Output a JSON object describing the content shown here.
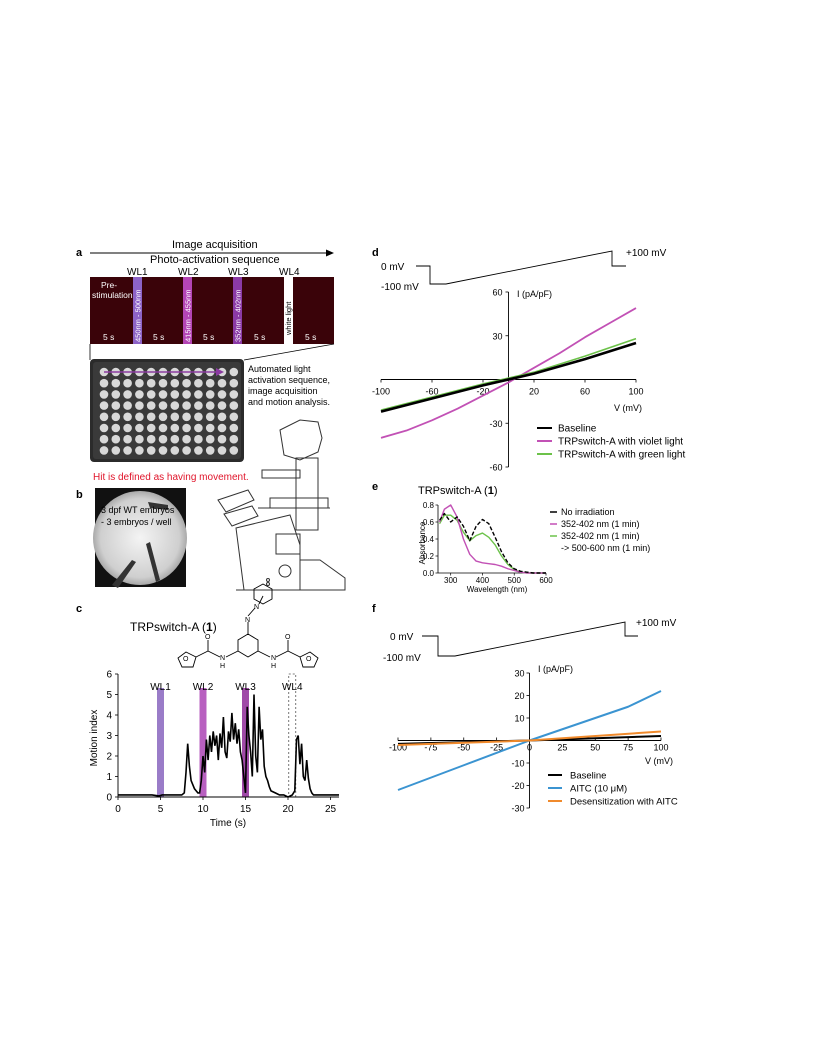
{
  "panel_labels": {
    "a": "a",
    "b": "b",
    "c": "c",
    "d": "d",
    "e": "e",
    "f": "f"
  },
  "panel_a": {
    "image_acquisition": "Image acquisition",
    "photoactivation_sequence": "Photo-activation sequence",
    "wl_labels": [
      "WL1",
      "WL2",
      "WL3",
      "WL4"
    ],
    "prestim_line1": "Pre-",
    "prestim_line2": "stimulation",
    "band_labels": [
      "450nm - 500nm",
      "415nm - 455nm",
      "352nm - 402nm",
      "white light"
    ],
    "interval_label": "5 s",
    "automation_line1": "Automated light",
    "automation_line2": "activation sequence,",
    "automation_line3": "image acquisition",
    "automation_line4": "and motion analysis.",
    "hit_definition": "Hit is defined as having movement.",
    "colors": {
      "dark_red": "#3a0309",
      "violet": "#9466c6",
      "magenta": "#b545b0",
      "purple": "#8a3aa0",
      "hit_red": "#e0142a"
    }
  },
  "panel_b": {
    "line1": "3 dpf WT embryos",
    "line2": "- 3 embryos / well"
  },
  "panel_c": {
    "compound_title": "TRPswitch-A (",
    "compound_number": "1",
    "compound_close": ")",
    "atom_n": "N",
    "atom_h": "H",
    "atom_o": "O",
    "chart_data": {
      "type": "line",
      "xlabel": "Time (s)",
      "ylabel": "Motion index",
      "xlim": [
        0,
        26
      ],
      "ylim": [
        0,
        6
      ],
      "xticks": [
        "0",
        "5",
        "10",
        "15",
        "20",
        "25"
      ],
      "yticks": [
        "0",
        "1",
        "2",
        "3",
        "4",
        "5",
        "6"
      ],
      "wl_markers": [
        {
          "label": "WL1",
          "t": 5,
          "color": "#9a7cc8"
        },
        {
          "label": "WL2",
          "t": 10,
          "color": "#b860c0"
        },
        {
          "label": "WL3",
          "t": 15,
          "color": "#a04aa8"
        },
        {
          "label": "WL4",
          "t": 20.5,
          "color": "none"
        }
      ],
      "x": [
        0,
        1,
        2,
        3,
        4,
        4.8,
        5.2,
        6,
        7,
        7.5,
        7.8,
        8,
        8.2,
        8.4,
        8.6,
        8.8,
        9,
        9.2,
        9.4,
        9.6,
        9.8,
        10,
        10.2,
        10.4,
        10.6,
        10.8,
        11,
        11.2,
        11.4,
        11.6,
        11.8,
        12,
        12.2,
        12.4,
        12.6,
        12.8,
        13,
        13.2,
        13.4,
        13.6,
        13.8,
        14,
        14.2,
        14.4,
        14.6,
        14.8,
        15,
        15.2,
        15.4,
        15.6,
        15.8,
        16,
        16.2,
        16.4,
        16.6,
        16.8,
        17,
        17.2,
        17.4,
        17.6,
        17.8,
        18,
        18.5,
        19,
        19.5,
        20,
        20.5,
        20.8,
        21,
        21.2,
        21.4,
        21.6,
        21.8,
        22,
        22.2,
        22.4,
        22.6,
        22.8,
        23,
        23.5,
        24,
        25,
        26
      ],
      "values": [
        0.1,
        0.1,
        0.1,
        0.1,
        0.1,
        0.05,
        0.1,
        0.1,
        0.1,
        0.1,
        0.2,
        1.2,
        2.6,
        1.5,
        0.8,
        0.6,
        0.4,
        0.3,
        0.2,
        0.2,
        0.8,
        2.0,
        1.2,
        2.8,
        1.8,
        3.0,
        2.2,
        3.2,
        2.5,
        3.0,
        1.8,
        3.1,
        2.4,
        3.9,
        2.2,
        1.9,
        3.2,
        2.7,
        4.1,
        2.8,
        3.6,
        2.6,
        3.3,
        2.2,
        1.8,
        1.0,
        0.2,
        4.4,
        3.0,
        2.2,
        1.0,
        5.0,
        2.0,
        1.2,
        4.4,
        2.8,
        3.3,
        1.5,
        1.0,
        0.8,
        0.5,
        0.3,
        0.2,
        0.1,
        0.1,
        0.0,
        0.1,
        0.3,
        2.8,
        3.0,
        1.6,
        2.6,
        1.0,
        0.8,
        1.8,
        0.9,
        0.4,
        0.2,
        0.1,
        0.1,
        0.1,
        0.1,
        0.1
      ]
    }
  },
  "panel_d": {
    "protocol_top": "+100 mV",
    "protocol_zero": "0 mV",
    "protocol_bottom": "-100 mV",
    "chart_data": {
      "type": "line",
      "xlabel": "V (mV)",
      "ylabel": "I (pA/pF)",
      "xlim": [
        -100,
        100
      ],
      "ylim": [
        -60,
        60
      ],
      "xticks": [
        "-100",
        "-60",
        "-20",
        "20",
        "60",
        "100"
      ],
      "yticks": [
        "60",
        "30",
        "-30",
        "-60"
      ],
      "series": [
        {
          "name": "Baseline",
          "color": "#000000",
          "width": 2.6,
          "x": [
            -100,
            -60,
            -20,
            20,
            60,
            100
          ],
          "values": [
            -22,
            -13,
            -4,
            4,
            14,
            25
          ]
        },
        {
          "name": "TRPswitch-A with violet light",
          "color": "#c251b5",
          "width": 1.8,
          "x": [
            -100,
            -80,
            -60,
            -40,
            -20,
            0,
            20,
            40,
            60,
            80,
            100
          ],
          "values": [
            -40,
            -35,
            -28,
            -20,
            -11,
            -2,
            8,
            18,
            29,
            39,
            49
          ]
        },
        {
          "name": "TRPswitch-A with green light",
          "color": "#6cc24a",
          "width": 1.6,
          "x": [
            -100,
            -60,
            -20,
            20,
            60,
            100
          ],
          "values": [
            -21,
            -12,
            -3,
            5,
            16,
            28
          ]
        }
      ]
    }
  },
  "panel_e": {
    "title": "TRPswitch-A (",
    "title_number": "1",
    "title_close": ")",
    "legend": [
      "No irradiation",
      "352-402 nm (1 min)",
      "352-402 nm (1 min)",
      "-> 500-600 nm (1 min)"
    ],
    "chart_data": {
      "type": "line",
      "xlabel": "Wavelength (nm)",
      "ylabel": "Absorbance",
      "xlim": [
        260,
        600
      ],
      "ylim": [
        0,
        0.8
      ],
      "xticks": [
        "300",
        "400",
        "500",
        "600"
      ],
      "yticks": [
        "0.0",
        "0.2",
        "0.4",
        "0.6",
        "0.8"
      ],
      "series": [
        {
          "name": "No irradiation",
          "color": "#000000",
          "dashed": true,
          "x": [
            265,
            280,
            300,
            320,
            340,
            360,
            380,
            400,
            420,
            440,
            460,
            480,
            500,
            520,
            540,
            560,
            580,
            600
          ],
          "values": [
            0.62,
            0.7,
            0.6,
            0.66,
            0.55,
            0.38,
            0.55,
            0.63,
            0.58,
            0.42,
            0.25,
            0.12,
            0.05,
            0.02,
            0.01,
            0.0,
            0.0,
            0.0
          ]
        },
        {
          "name": "352-402 nm (1 min)",
          "color": "#c251b5",
          "x": [
            265,
            280,
            300,
            320,
            340,
            360,
            380,
            400,
            420,
            440,
            460,
            480,
            500,
            520,
            540,
            560,
            580,
            600
          ],
          "values": [
            0.6,
            0.75,
            0.8,
            0.66,
            0.4,
            0.22,
            0.14,
            0.12,
            0.11,
            0.1,
            0.08,
            0.05,
            0.03,
            0.01,
            0.0,
            0.0,
            0.0,
            0.0
          ]
        },
        {
          "name": "352-402 nm (1 min) -> 500-600 nm (1 min)",
          "color": "#6cc24a",
          "x": [
            265,
            280,
            300,
            320,
            340,
            360,
            380,
            400,
            420,
            440,
            460,
            480,
            500,
            520,
            540,
            560,
            580,
            600
          ],
          "values": [
            0.58,
            0.68,
            0.68,
            0.62,
            0.48,
            0.38,
            0.44,
            0.47,
            0.42,
            0.33,
            0.2,
            0.1,
            0.04,
            0.01,
            0.0,
            0.0,
            0.0,
            0.0
          ]
        }
      ]
    }
  },
  "panel_f": {
    "protocol_top": "+100 mV",
    "protocol_zero": "0 mV",
    "protocol_bottom": "-100 mV",
    "chart_data": {
      "type": "line",
      "xlabel": "V (mV)",
      "ylabel": "I (pA/pF)",
      "xlim": [
        -100,
        100
      ],
      "ylim": [
        -30,
        30
      ],
      "xticks": [
        "-100",
        "-75",
        "-50",
        "-25",
        "0",
        "25",
        "50",
        "75",
        "100"
      ],
      "yticks": [
        "30",
        "20",
        "10",
        "-10",
        "-20",
        "-30"
      ],
      "series": [
        {
          "name": "Baseline",
          "color": "#000000",
          "x": [
            -100,
            0,
            100
          ],
          "values": [
            -1.5,
            0,
            2
          ]
        },
        {
          "name": "AITC (10 μM)",
          "color": "#3b94d1",
          "x": [
            -100,
            -50,
            0,
            50,
            75,
            100
          ],
          "values": [
            -22,
            -11,
            0,
            10,
            15,
            22
          ]
        },
        {
          "name": "Desensitization with AITC",
          "color": "#f08a2c",
          "x": [
            -100,
            0,
            100
          ],
          "values": [
            -2,
            0,
            4
          ]
        }
      ]
    }
  }
}
